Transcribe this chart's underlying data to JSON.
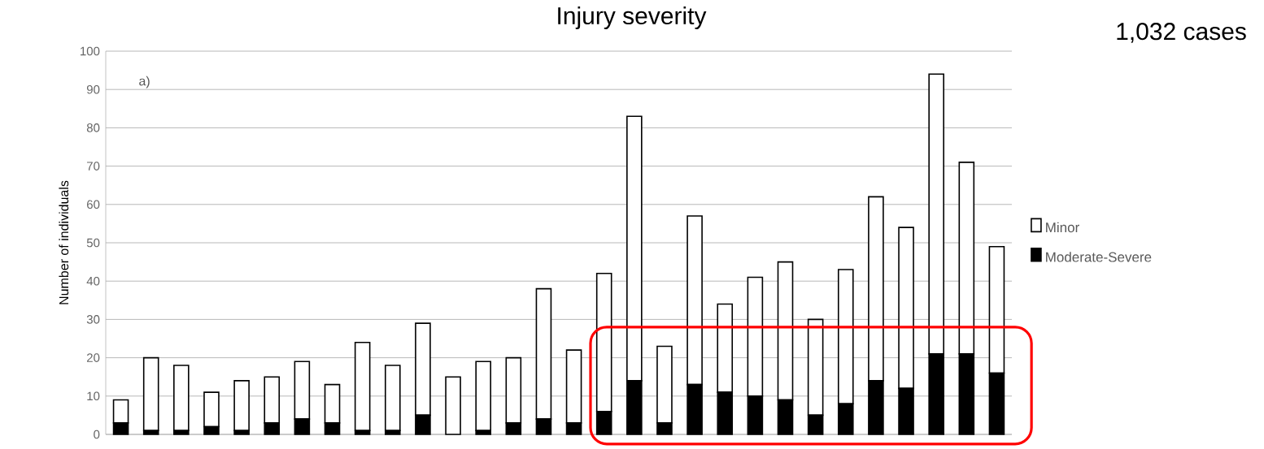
{
  "chart_data": {
    "type": "bar",
    "title": "Injury severity",
    "ylabel": "Number of individuals",
    "annotations": [
      "a)",
      "1,032 cases"
    ],
    "categories": [
      null,
      null,
      null,
      null,
      null,
      null,
      null,
      null,
      null,
      null,
      null,
      null,
      null,
      null,
      null,
      null,
      null,
      null,
      null,
      null,
      null,
      null,
      null,
      null,
      null,
      null,
      null,
      null,
      null,
      null
    ],
    "stacked": true,
    "series": [
      {
        "name": "Moderate-Severe",
        "color": "#000000",
        "values": [
          3,
          1,
          1,
          2,
          1,
          3,
          4,
          3,
          1,
          1,
          5,
          0,
          1,
          3,
          4,
          3,
          6,
          14,
          3,
          13,
          11,
          10,
          9,
          5,
          8,
          14,
          12,
          21,
          21,
          16
        ]
      },
      {
        "name": "Minor",
        "color": "#ffffff",
        "values": [
          6,
          19,
          17,
          9,
          13,
          12,
          15,
          10,
          23,
          17,
          24,
          15,
          18,
          17,
          34,
          19,
          36,
          69,
          20,
          44,
          23,
          31,
          36,
          25,
          35,
          48,
          42,
          73,
          50,
          33
        ]
      }
    ],
    "ylim": [
      0,
      100
    ],
    "yticks": [
      0,
      10,
      20,
      30,
      40,
      50,
      60,
      70,
      80,
      90,
      100
    ],
    "grid": "y",
    "legend": "right"
  }
}
